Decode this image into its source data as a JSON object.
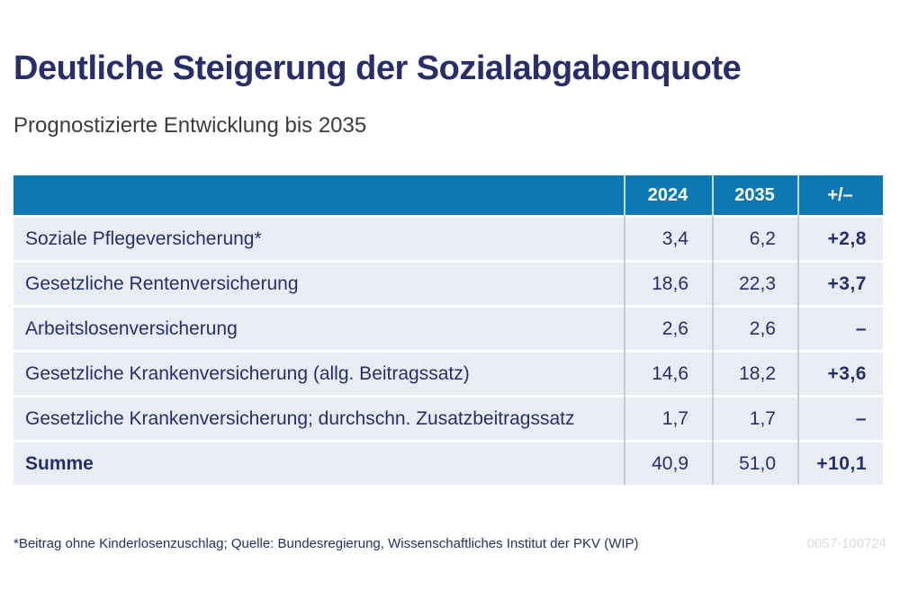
{
  "title": "Deutliche Steigerung der Sozialabgabenquote",
  "subtitle": "Prognostizierte Entwicklung bis 2035",
  "colors": {
    "header_blue": "#0e78b4",
    "row_background": "#e8edf4",
    "text_navy": "#24306b",
    "title_navy": "#272e6a",
    "subtitle_gray": "#3c3c3b",
    "code_gray": "#dcdcdc"
  },
  "table": {
    "columns": {
      "year1": "2024",
      "year2": "2035",
      "delta": "+/–"
    },
    "rows": [
      {
        "label": "Soziale Pflegeversicherung*",
        "y2024": "3,4",
        "y2035": "6,2",
        "delta": "+2,8"
      },
      {
        "label": "Gesetzliche Rentenversicherung",
        "y2024": "18,6",
        "y2035": "22,3",
        "delta": "+3,7"
      },
      {
        "label": "Arbeitslosenversicherung",
        "y2024": "2,6",
        "y2035": "2,6",
        "delta": "–"
      },
      {
        "label": "Gesetzliche Krankenversicherung (allg. Beitragssatz)",
        "y2024": "14,6",
        "y2035": "18,2",
        "delta": "+3,6"
      },
      {
        "label": "Gesetzliche Krankenversicherung; durchschn. Zusatzbeitragssatz",
        "y2024": "1,7",
        "y2035": "1,7",
        "delta": "–"
      },
      {
        "label": "Summe",
        "y2024": "40,9",
        "y2035": "51,0",
        "delta": "+10,1"
      }
    ]
  },
  "footer": {
    "note": "*Beitrag ohne Kinderlosenzuschlag; Quelle: Bundesregierung, Wissenschaftliches Institut der PKV (WIP)",
    "code": "0057-100724"
  },
  "chart_data": {
    "type": "table",
    "title": "Deutliche Steigerung der Sozialabgabenquote",
    "subtitle": "Prognostizierte Entwicklung bis 2035",
    "columns": [
      "",
      "2024",
      "2035",
      "+/–"
    ],
    "rows": [
      {
        "label": "Soziale Pflegeversicherung*",
        "2024": 3.4,
        "2035": 6.2,
        "delta": 2.8
      },
      {
        "label": "Gesetzliche Rentenversicherung",
        "2024": 18.6,
        "2035": 22.3,
        "delta": 3.7
      },
      {
        "label": "Arbeitslosenversicherung",
        "2024": 2.6,
        "2035": 2.6,
        "delta": null
      },
      {
        "label": "Gesetzliche Krankenversicherung (allg. Beitragssatz)",
        "2024": 14.6,
        "2035": 18.2,
        "delta": 3.6
      },
      {
        "label": "Gesetzliche Krankenversicherung; durchschn. Zusatzbeitragssatz",
        "2024": 1.7,
        "2035": 1.7,
        "delta": null
      },
      {
        "label": "Summe",
        "2024": 40.9,
        "2035": 51.0,
        "delta": 10.1
      }
    ]
  }
}
